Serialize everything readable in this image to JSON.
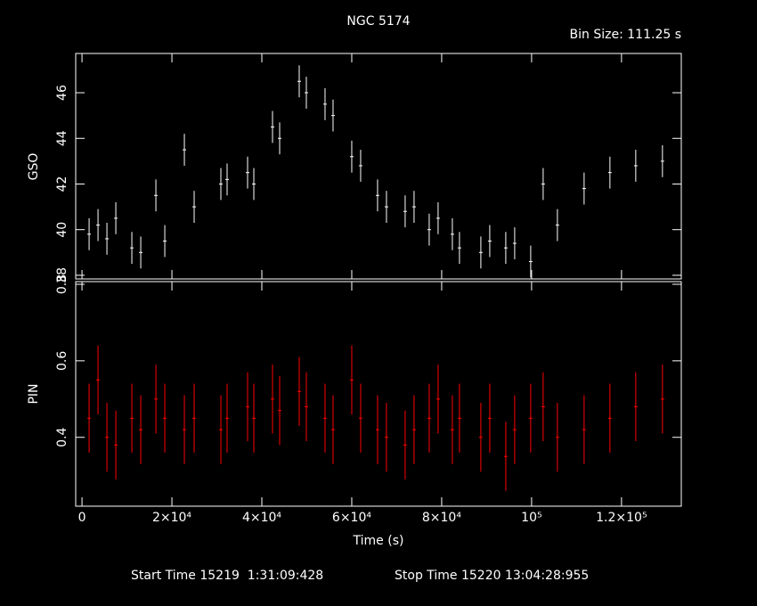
{
  "chart_data": [
    {
      "type": "scatter",
      "title": "NGC 5174",
      "subtitle": "Bin Size: 111.25 s",
      "ylabel": "GSO",
      "x": [
        1584,
        3564,
        5545,
        7525,
        11089,
        13069,
        16436,
        18416,
        22772,
        24950,
        30891,
        32277,
        36832,
        38218,
        42376,
        43960,
        48317,
        49901,
        54059,
        55842,
        60000,
        61980,
        65743,
        67723,
        71881,
        73861,
        77228,
        79208,
        82376,
        83960,
        88713,
        90693,
        94257,
        96238,
        99802,
        102574,
        105743,
        111683,
        117426,
        123168,
        129109
      ],
      "series": [
        {
          "name": "GSO",
          "color": "#ffffff",
          "error": 0.7,
          "values": [
            39.8,
            40.2,
            39.6,
            40.5,
            39.2,
            39.0,
            41.5,
            39.5,
            43.5,
            41.0,
            42.0,
            42.2,
            42.5,
            42.0,
            44.5,
            44.0,
            46.5,
            46.0,
            45.5,
            45.0,
            43.2,
            42.8,
            41.5,
            41.0,
            40.8,
            41.0,
            40.0,
            40.5,
            39.8,
            39.2,
            39.0,
            39.5,
            39.2,
            39.4,
            38.6,
            42.0,
            40.2,
            41.8,
            42.5,
            42.8,
            43.0
          ]
        }
      ],
      "xlim": [
        -1400,
        133300
      ],
      "xticks": [
        0,
        20000,
        40000,
        60000,
        80000,
        100000,
        120000
      ],
      "ylim": [
        37.84,
        47.72
      ],
      "yticks": [
        38,
        40,
        42,
        44,
        46
      ]
    },
    {
      "type": "scatter",
      "ylabel": "PIN",
      "xlabel": "Time (s)",
      "x": [
        1584,
        3564,
        5545,
        7525,
        11089,
        13069,
        16436,
        18416,
        22772,
        24950,
        30891,
        32277,
        36832,
        38218,
        42376,
        43960,
        48317,
        49901,
        54059,
        55842,
        60000,
        61980,
        65743,
        67723,
        71881,
        73861,
        77228,
        79208,
        82376,
        83960,
        88713,
        90693,
        94257,
        96238,
        99802,
        102574,
        105743,
        111683,
        117426,
        123168,
        129109
      ],
      "series": [
        {
          "name": "PIN",
          "color": "#ff0000",
          "error": 0.09,
          "values": [
            0.45,
            0.55,
            0.4,
            0.38,
            0.45,
            0.42,
            0.5,
            0.45,
            0.42,
            0.45,
            0.42,
            0.45,
            0.48,
            0.45,
            0.5,
            0.47,
            0.52,
            0.48,
            0.45,
            0.42,
            0.55,
            0.45,
            0.42,
            0.4,
            0.38,
            0.42,
            0.45,
            0.5,
            0.42,
            0.45,
            0.4,
            0.45,
            0.35,
            0.42,
            0.45,
            0.48,
            0.4,
            0.42,
            0.45,
            0.48,
            0.5
          ]
        }
      ],
      "xlim": [
        -1400,
        133300
      ],
      "xticks": [
        0,
        {
          "value": 20000,
          "label": "2×10⁴"
        },
        {
          "value": 40000,
          "label": "4×10⁴"
        },
        {
          "value": 60000,
          "label": "6×10⁴"
        },
        {
          "value": 80000,
          "label": "8×10⁴"
        },
        {
          "value": 100000,
          "label": "10⁵"
        },
        {
          "value": 120000,
          "label": "1.2×10⁵"
        }
      ],
      "ylim": [
        0.22,
        0.807
      ],
      "yticks": [
        0.4,
        0.6,
        0.8
      ]
    }
  ],
  "footer": {
    "start": "Start Time 15219  1:31:09:428",
    "stop": "Stop Time 15220 13:04:28:955"
  }
}
